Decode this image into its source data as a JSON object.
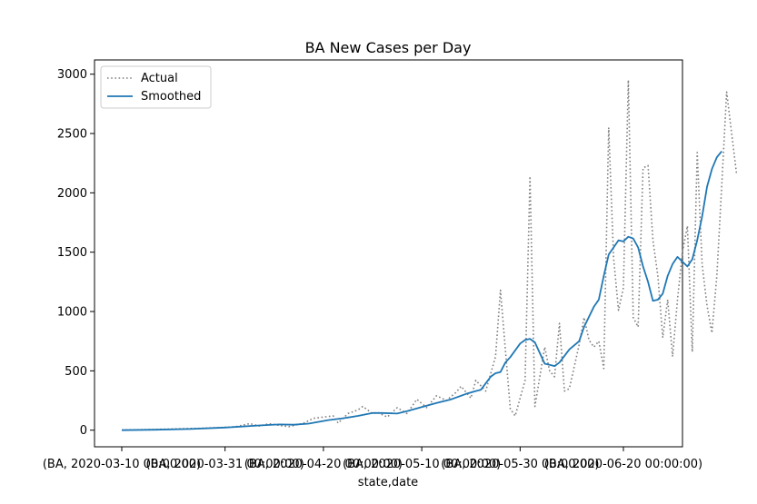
{
  "chart_data": {
    "type": "line",
    "title": "BA New Cases per Day",
    "xlabel": "state,date",
    "ylabel": "",
    "ylim": [
      -140,
      3120
    ],
    "yticks": [
      0,
      500,
      1000,
      1500,
      2000,
      2500,
      3000
    ],
    "x_start_label": "(BA, 2020-03-10 00:00:00)",
    "xticks": [
      "(BA, 2020-03-10 00:00:00)",
      "(BA, 2020-03-31 00:00:00)",
      "(BA, 2020-04-20 00:00:00)",
      "(BA, 2020-05-10 00:00:00)",
      "(BA, 2020-05-30 00:00:00)",
      "(BA, 2020-06-20 00:00:00)"
    ],
    "xtick_dates": [
      "2020-03-10",
      "2020-03-31",
      "2020-04-20",
      "2020-05-10",
      "2020-05-30",
      "2020-06-20"
    ],
    "legend_position": "upper-left",
    "series": [
      {
        "name": "Actual",
        "style": "dotted",
        "color": "#808080",
        "points": [
          [
            "2020-03-10",
            2
          ],
          [
            "2020-03-14",
            4
          ],
          [
            "2020-03-18",
            8
          ],
          [
            "2020-03-22",
            12
          ],
          [
            "2020-03-26",
            16
          ],
          [
            "2020-03-30",
            22
          ],
          [
            "2020-04-02",
            28
          ],
          [
            "2020-04-05",
            55
          ],
          [
            "2020-04-07",
            35
          ],
          [
            "2020-04-09",
            55
          ],
          [
            "2020-04-11",
            40
          ],
          [
            "2020-04-13",
            30
          ],
          [
            "2020-04-16",
            60
          ],
          [
            "2020-04-18",
            100
          ],
          [
            "2020-04-20",
            110
          ],
          [
            "2020-04-22",
            120
          ],
          [
            "2020-04-23",
            60
          ],
          [
            "2020-04-25",
            140
          ],
          [
            "2020-04-27",
            170
          ],
          [
            "2020-04-28",
            200
          ],
          [
            "2020-04-30",
            140
          ],
          [
            "2020-05-01",
            150
          ],
          [
            "2020-05-03",
            110
          ],
          [
            "2020-05-05",
            190
          ],
          [
            "2020-05-07",
            140
          ],
          [
            "2020-05-09",
            260
          ],
          [
            "2020-05-11",
            190
          ],
          [
            "2020-05-13",
            290
          ],
          [
            "2020-05-15",
            250
          ],
          [
            "2020-05-17",
            320
          ],
          [
            "2020-05-18",
            370
          ],
          [
            "2020-05-20",
            270
          ],
          [
            "2020-05-21",
            420
          ],
          [
            "2020-05-23",
            330
          ],
          [
            "2020-05-25",
            620
          ],
          [
            "2020-05-26",
            1180
          ],
          [
            "2020-05-28",
            180
          ],
          [
            "2020-05-29",
            120
          ],
          [
            "2020-05-31",
            420
          ],
          [
            "2020-06-01",
            2140
          ],
          [
            "2020-06-02",
            200
          ],
          [
            "2020-06-04",
            700
          ],
          [
            "2020-06-05",
            500
          ],
          [
            "2020-06-06",
            450
          ],
          [
            "2020-06-07",
            900
          ],
          [
            "2020-06-08",
            330
          ],
          [
            "2020-06-09",
            350
          ],
          [
            "2020-06-11",
            720
          ],
          [
            "2020-06-12",
            950
          ],
          [
            "2020-06-13",
            760
          ],
          [
            "2020-06-14",
            700
          ],
          [
            "2020-06-15",
            750
          ],
          [
            "2020-06-16",
            520
          ],
          [
            "2020-06-17",
            2550
          ],
          [
            "2020-06-18",
            1450
          ],
          [
            "2020-06-19",
            1010
          ],
          [
            "2020-06-20",
            1200
          ],
          [
            "2020-06-21",
            2950
          ],
          [
            "2020-06-22",
            950
          ],
          [
            "2020-06-23",
            870
          ],
          [
            "2020-06-24",
            2210
          ],
          [
            "2020-06-25",
            2230
          ],
          [
            "2020-06-26",
            1600
          ],
          [
            "2020-06-27",
            1300
          ],
          [
            "2020-06-28",
            780
          ],
          [
            "2020-06-29",
            1100
          ],
          [
            "2020-06-30",
            620
          ],
          [
            "2020-07-01",
            1100
          ],
          [
            "2020-07-02",
            1500
          ],
          [
            "2020-07-03",
            1720
          ],
          [
            "2020-07-04",
            660
          ],
          [
            "2020-07-05",
            2340
          ],
          [
            "2020-07-06",
            1400
          ],
          [
            "2020-07-07",
            1050
          ],
          [
            "2020-07-08",
            820
          ],
          [
            "2020-07-09",
            1300
          ],
          [
            "2020-07-10",
            2060
          ],
          [
            "2020-07-11",
            2850
          ],
          [
            "2020-07-12",
            2500
          ],
          [
            "2020-07-13",
            2160
          ]
        ]
      },
      {
        "name": "Smoothed",
        "style": "solid",
        "color": "#1f77b4",
        "points": [
          [
            "2020-03-10",
            0
          ],
          [
            "2020-03-17",
            4
          ],
          [
            "2020-03-24",
            10
          ],
          [
            "2020-03-31",
            22
          ],
          [
            "2020-04-07",
            40
          ],
          [
            "2020-04-11",
            48
          ],
          [
            "2020-04-14",
            46
          ],
          [
            "2020-04-17",
            55
          ],
          [
            "2020-04-21",
            85
          ],
          [
            "2020-04-24",
            100
          ],
          [
            "2020-04-27",
            120
          ],
          [
            "2020-04-30",
            145
          ],
          [
            "2020-05-02",
            145
          ],
          [
            "2020-05-05",
            140
          ],
          [
            "2020-05-07",
            160
          ],
          [
            "2020-05-10",
            195
          ],
          [
            "2020-05-13",
            230
          ],
          [
            "2020-05-16",
            260
          ],
          [
            "2020-05-19",
            305
          ],
          [
            "2020-05-21",
            330
          ],
          [
            "2020-05-22",
            340
          ],
          [
            "2020-05-24",
            450
          ],
          [
            "2020-05-25",
            480
          ],
          [
            "2020-05-26",
            490
          ],
          [
            "2020-05-27",
            570
          ],
          [
            "2020-05-28",
            615
          ],
          [
            "2020-05-30",
            730
          ],
          [
            "2020-05-31",
            760
          ],
          [
            "2020-06-01",
            770
          ],
          [
            "2020-06-02",
            740
          ],
          [
            "2020-06-03",
            650
          ],
          [
            "2020-06-04",
            560
          ],
          [
            "2020-06-05",
            550
          ],
          [
            "2020-06-06",
            540
          ],
          [
            "2020-06-07",
            570
          ],
          [
            "2020-06-09",
            680
          ],
          [
            "2020-06-11",
            750
          ],
          [
            "2020-06-12",
            870
          ],
          [
            "2020-06-14",
            1040
          ],
          [
            "2020-06-15",
            1100
          ],
          [
            "2020-06-16",
            1300
          ],
          [
            "2020-06-17",
            1480
          ],
          [
            "2020-06-18",
            1540
          ],
          [
            "2020-06-19",
            1600
          ],
          [
            "2020-06-20",
            1590
          ],
          [
            "2020-06-21",
            1630
          ],
          [
            "2020-06-22",
            1615
          ],
          [
            "2020-06-23",
            1540
          ],
          [
            "2020-06-24",
            1380
          ],
          [
            "2020-06-25",
            1250
          ],
          [
            "2020-06-26",
            1090
          ],
          [
            "2020-06-27",
            1100
          ],
          [
            "2020-06-28",
            1150
          ],
          [
            "2020-06-29",
            1300
          ],
          [
            "2020-06-30",
            1400
          ],
          [
            "2020-07-01",
            1460
          ],
          [
            "2020-07-02",
            1420
          ],
          [
            "2020-07-03",
            1380
          ],
          [
            "2020-07-04",
            1440
          ],
          [
            "2020-07-05",
            1600
          ],
          [
            "2020-07-06",
            1800
          ],
          [
            "2020-07-07",
            2050
          ],
          [
            "2020-07-08",
            2200
          ],
          [
            "2020-07-09",
            2300
          ],
          [
            "2020-07-10",
            2350
          ]
        ]
      }
    ]
  }
}
